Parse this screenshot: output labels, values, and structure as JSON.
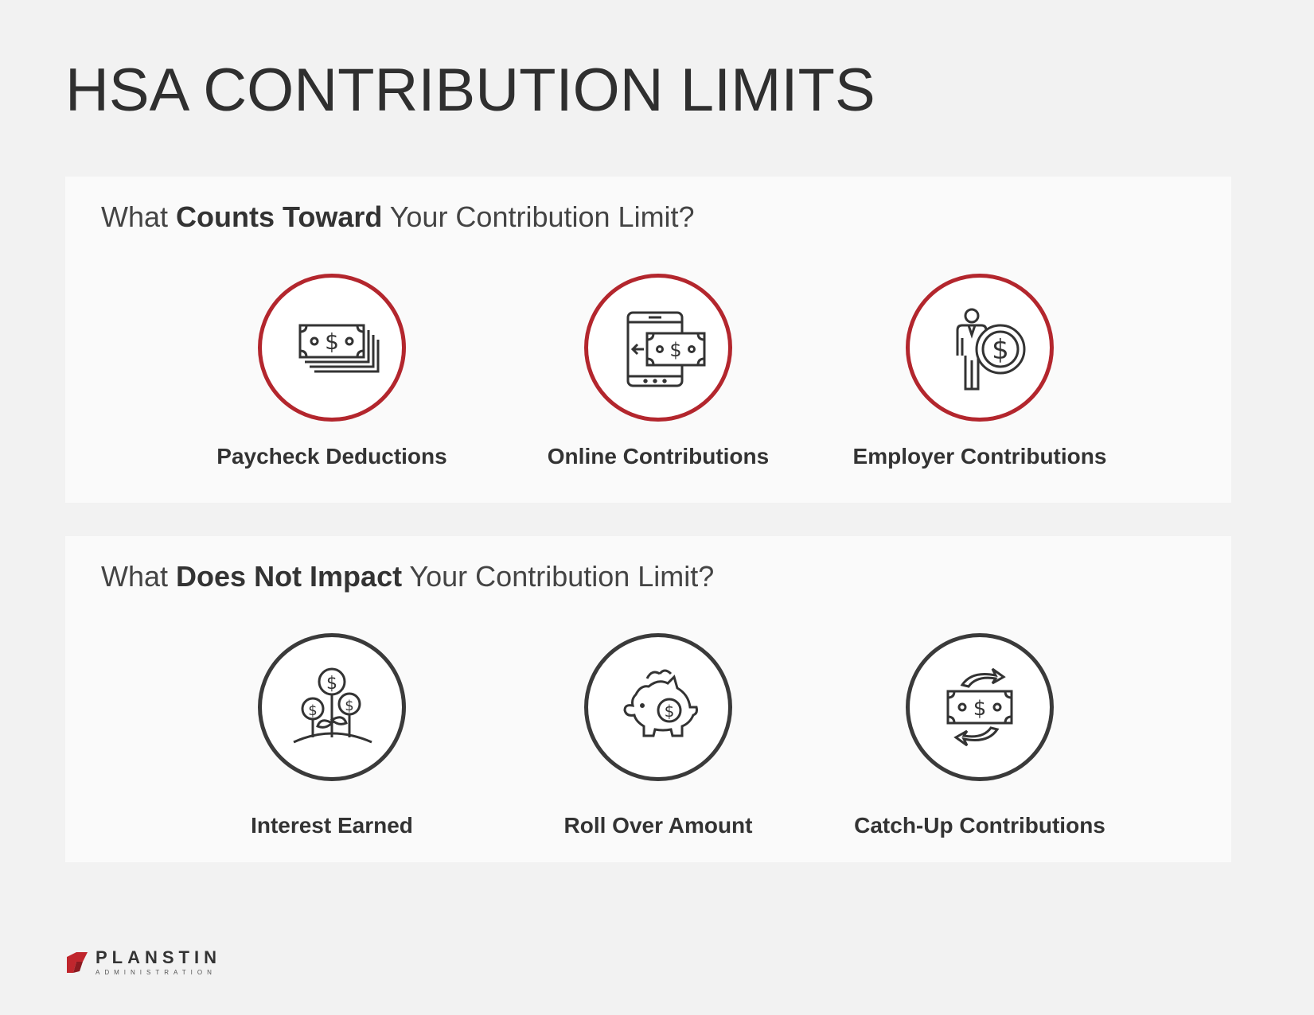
{
  "title": "HSA CONTRIBUTION LIMITS",
  "section_counts": {
    "heading_pre": "What ",
    "heading_bold": "Counts Toward",
    "heading_post": " Your Contribution Limit?",
    "items": [
      {
        "label": "Paycheck Deductions",
        "icon": "cash-stack-icon"
      },
      {
        "label": "Online Contributions",
        "icon": "phone-money-transfer-icon"
      },
      {
        "label": "Employer Contributions",
        "icon": "person-coin-icon"
      }
    ]
  },
  "section_not_impact": {
    "heading_pre": "What ",
    "heading_bold": "Does Not Impact",
    "heading_post": " Your Contribution Limit?",
    "items": [
      {
        "label": "Interest Earned",
        "icon": "money-tree-icon"
      },
      {
        "label": "Roll Over Amount",
        "icon": "piggy-bank-icon"
      },
      {
        "label": "Catch-Up Contributions",
        "icon": "cash-cycle-icon"
      }
    ]
  },
  "logo": {
    "name": "PLANSTIN",
    "subtitle": "ADMINISTRATION"
  },
  "colors": {
    "accent_red": "#b3262d",
    "dark": "#3a3a3a",
    "background": "#f2f2f2",
    "panel": "#fafafa"
  }
}
